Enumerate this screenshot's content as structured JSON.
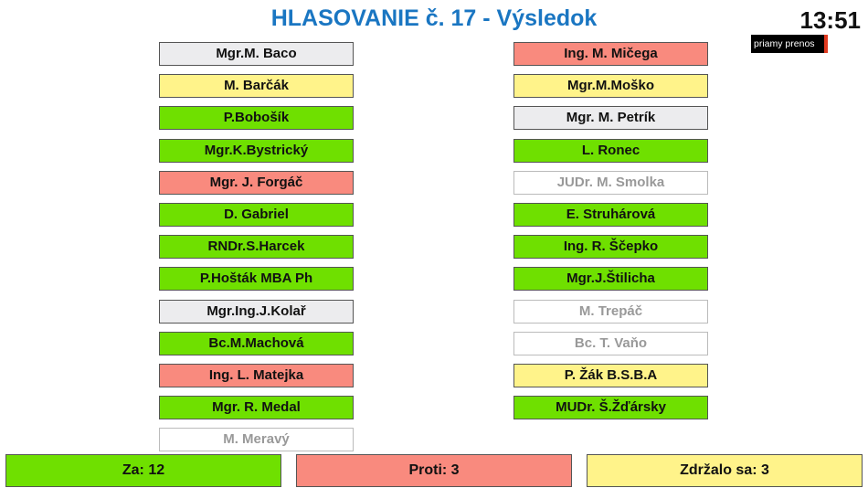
{
  "header": {
    "title": "HLASOVANIE č. 17 - Výsledok",
    "clock": "13:51",
    "live_label": "priamy prenos"
  },
  "colors": {
    "za": "#6fe000",
    "proti": "#f98a7e",
    "zdrzal": "#fff38a",
    "nehlasoval": "#ececee",
    "nepritomny": "#ffffff"
  },
  "left": [
    {
      "name": "Mgr.M. Baco",
      "status": "nehlas"
    },
    {
      "name": "M. Barčák",
      "status": "zdrzal"
    },
    {
      "name": "P.Bobošík",
      "status": "za"
    },
    {
      "name": "Mgr.K.Bystrický",
      "status": "za"
    },
    {
      "name": "Mgr. J. Forgáč",
      "status": "proti"
    },
    {
      "name": "D. Gabriel",
      "status": "za"
    },
    {
      "name": "RNDr.S.Harcek",
      "status": "za"
    },
    {
      "name": "P.Hošták MBA Ph",
      "status": "za"
    },
    {
      "name": "Mgr.Ing.J.Kolař",
      "status": "nehlas"
    },
    {
      "name": "Bc.M.Machová",
      "status": "za"
    },
    {
      "name": "Ing. L. Matejka",
      "status": "proti"
    },
    {
      "name": "Mgr. R. Medal",
      "status": "za"
    },
    {
      "name": "M. Meravý",
      "status": "nepritomny"
    }
  ],
  "right": [
    {
      "name": "Ing. M. Mičega",
      "status": "proti"
    },
    {
      "name": "Mgr.M.Moško",
      "status": "zdrzal"
    },
    {
      "name": "Mgr. M. Petrík",
      "status": "nehlas"
    },
    {
      "name": "L. Ronec",
      "status": "za"
    },
    {
      "name": "JUDr. M. Smolka",
      "status": "nepritomny"
    },
    {
      "name": "E. Struhárová",
      "status": "za"
    },
    {
      "name": "Ing. R. Ščepko",
      "status": "za"
    },
    {
      "name": "Mgr.J.Štilicha",
      "status": "za"
    },
    {
      "name": "M. Trepáč",
      "status": "nepritomny"
    },
    {
      "name": "Bc. T. Vaňo",
      "status": "nepritomny"
    },
    {
      "name": "P. Žák B.S.B.A",
      "status": "zdrzal"
    },
    {
      "name": "MUDr. Š.Žďársky",
      "status": "za"
    }
  ],
  "summary": {
    "za": "Za: 12",
    "proti": "Proti: 3",
    "zdrzal": "Zdržalo sa: 3"
  }
}
